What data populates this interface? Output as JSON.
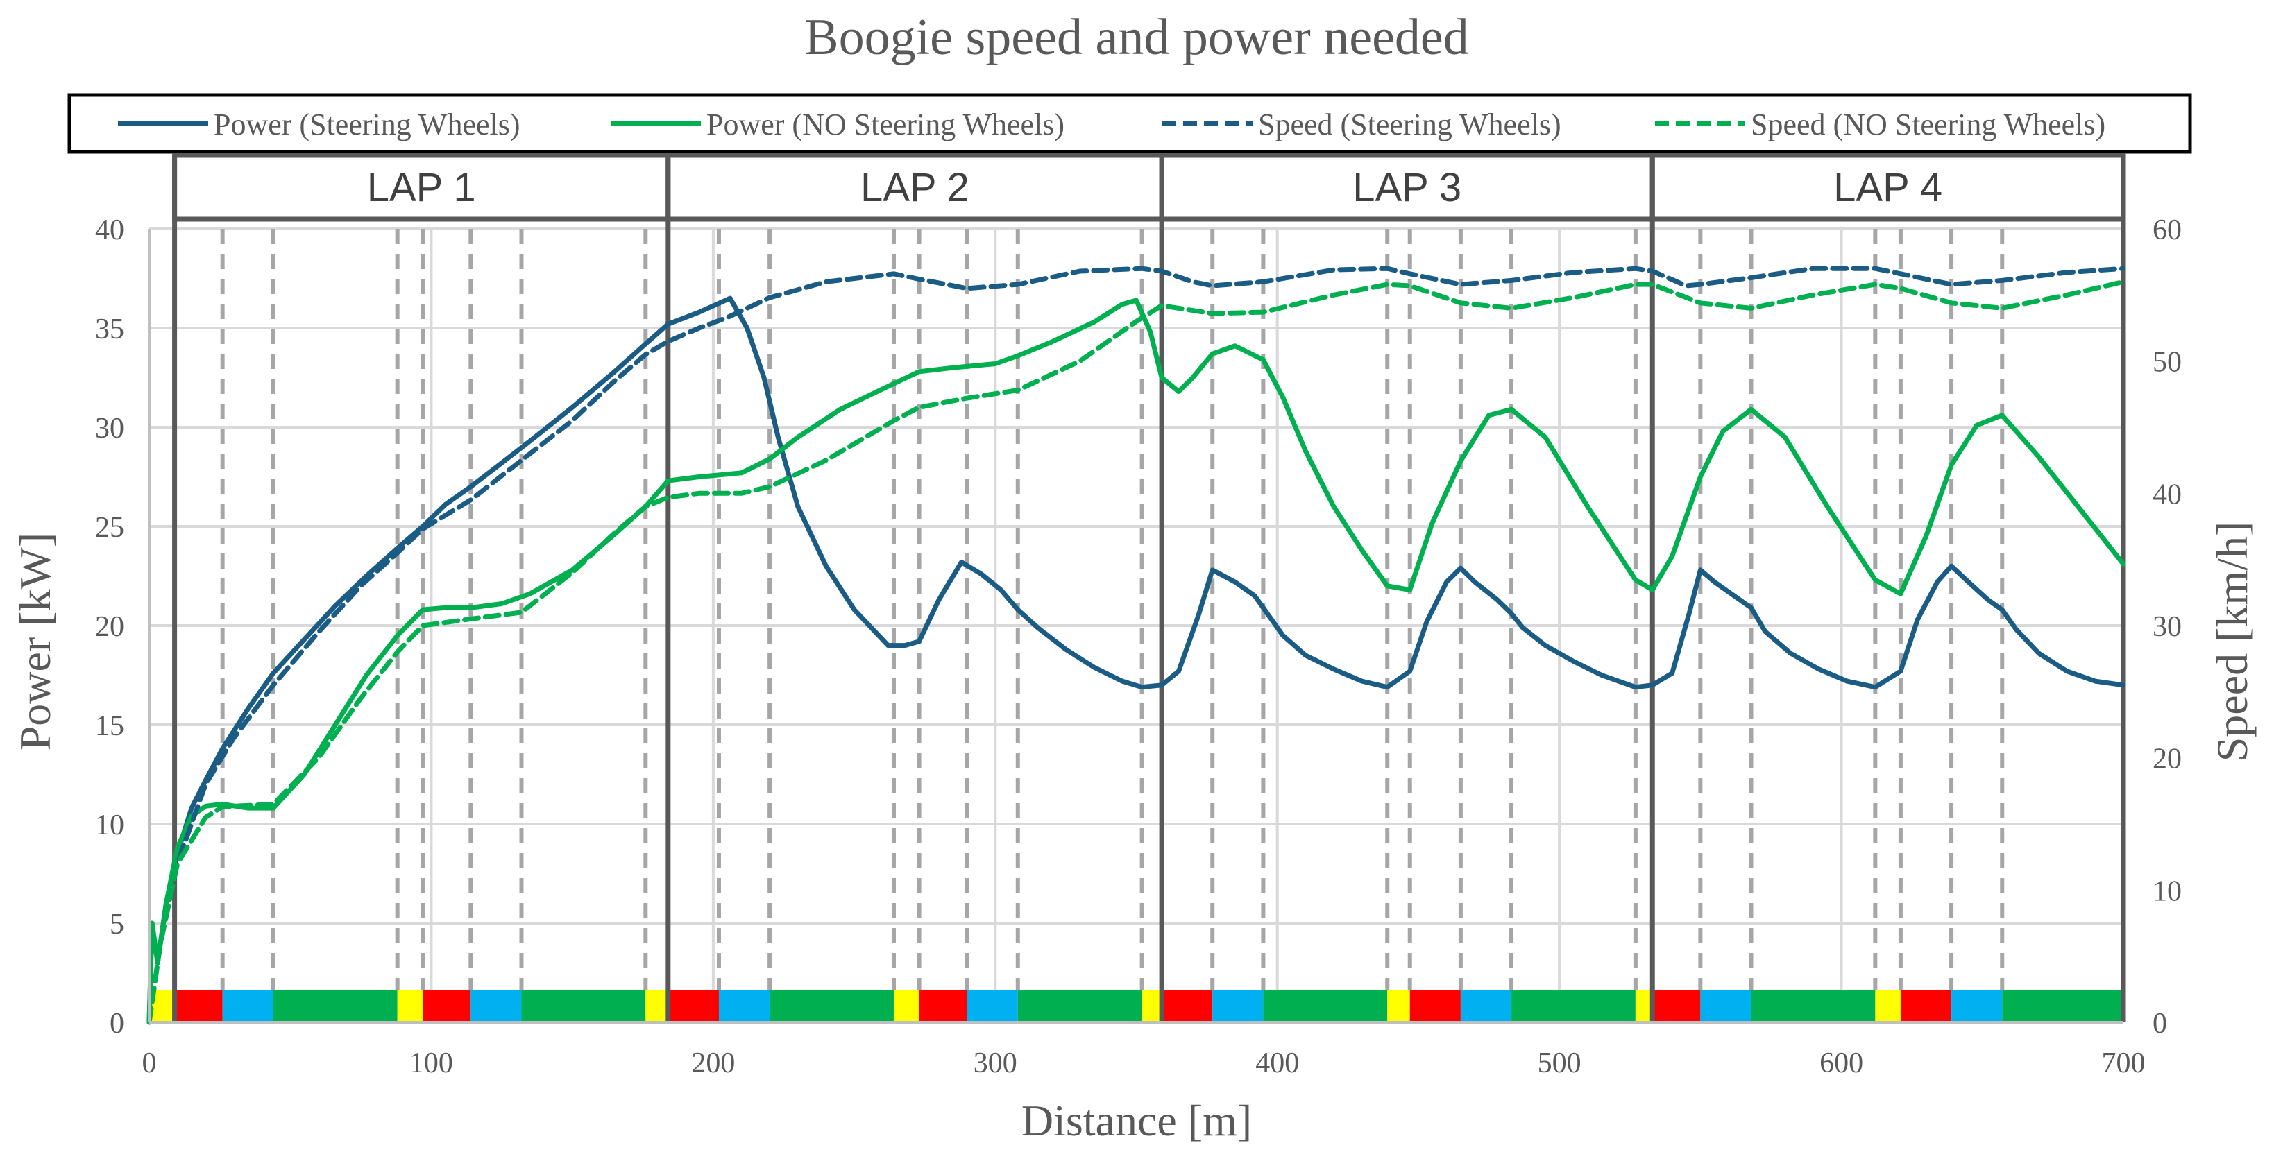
{
  "chart_data": {
    "type": "line",
    "title": "Boogie speed and power needed",
    "xlabel": "Distance [m]",
    "ylabel": "Power [kW]",
    "y2label": "Speed [km/h]",
    "xlim": [
      0,
      700
    ],
    "ylim": [
      0,
      40
    ],
    "y2lim": [
      0,
      60
    ],
    "xticks": [
      "0",
      "100",
      "200",
      "300",
      "400",
      "500",
      "600",
      "700"
    ],
    "yticks": [
      "0",
      "5",
      "10",
      "15",
      "20",
      "25",
      "30",
      "35",
      "40"
    ],
    "y2ticks": [
      "0",
      "10",
      "20",
      "30",
      "40",
      "50",
      "60"
    ],
    "legend_position": "top",
    "colors": {
      "steering": "#1B5C85",
      "no_steering": "#00B050",
      "red": "#FF0000",
      "yellow": "#FFFF00",
      "blue": "#00B0F0",
      "green": "#00B050",
      "lap_border": "#595959",
      "dashed": "#A6A6A6",
      "text": "#595959"
    },
    "laps": [
      {
        "label": "LAP 1",
        "start": 9,
        "end": 184
      },
      {
        "label": "LAP 2",
        "start": 184,
        "end": 359
      },
      {
        "label": "LAP 3",
        "start": 359,
        "end": 533
      },
      {
        "label": "LAP 4",
        "start": 533,
        "end": 700
      }
    ],
    "section_boundaries": [
      26,
      44,
      88,
      97,
      114,
      132,
      176,
      202,
      220,
      264,
      273,
      290,
      308,
      352,
      377,
      395,
      439,
      447,
      465,
      483,
      527,
      550,
      568,
      612,
      621,
      639,
      657,
      700
    ],
    "track_bar": [
      {
        "from": 0,
        "to": 9,
        "color": "yellow"
      },
      {
        "from": 9,
        "to": 26,
        "color": "red"
      },
      {
        "from": 26,
        "to": 44,
        "color": "blue"
      },
      {
        "from": 44,
        "to": 88,
        "color": "green"
      },
      {
        "from": 88,
        "to": 97,
        "color": "yellow"
      },
      {
        "from": 97,
        "to": 114,
        "color": "red"
      },
      {
        "from": 114,
        "to": 132,
        "color": "blue"
      },
      {
        "from": 132,
        "to": 176,
        "color": "green"
      },
      {
        "from": 176,
        "to": 184,
        "color": "yellow"
      },
      {
        "from": 184,
        "to": 202,
        "color": "red"
      },
      {
        "from": 202,
        "to": 220,
        "color": "blue"
      },
      {
        "from": 220,
        "to": 264,
        "color": "green"
      },
      {
        "from": 264,
        "to": 273,
        "color": "yellow"
      },
      {
        "from": 273,
        "to": 290,
        "color": "red"
      },
      {
        "from": 290,
        "to": 308,
        "color": "blue"
      },
      {
        "from": 308,
        "to": 352,
        "color": "green"
      },
      {
        "from": 352,
        "to": 359,
        "color": "yellow"
      },
      {
        "from": 359,
        "to": 377,
        "color": "red"
      },
      {
        "from": 377,
        "to": 395,
        "color": "blue"
      },
      {
        "from": 395,
        "to": 439,
        "color": "green"
      },
      {
        "from": 439,
        "to": 447,
        "color": "yellow"
      },
      {
        "from": 447,
        "to": 465,
        "color": "red"
      },
      {
        "from": 465,
        "to": 483,
        "color": "blue"
      },
      {
        "from": 483,
        "to": 527,
        "color": "green"
      },
      {
        "from": 527,
        "to": 533,
        "color": "yellow"
      },
      {
        "from": 533,
        "to": 550,
        "color": "red"
      },
      {
        "from": 550,
        "to": 568,
        "color": "blue"
      },
      {
        "from": 568,
        "to": 612,
        "color": "green"
      },
      {
        "from": 612,
        "to": 621,
        "color": "yellow"
      },
      {
        "from": 621,
        "to": 639,
        "color": "red"
      },
      {
        "from": 639,
        "to": 657,
        "color": "blue"
      },
      {
        "from": 657,
        "to": 700,
        "color": "green"
      }
    ],
    "series": [
      {
        "name": "Power (Steering Wheels)",
        "axis": "left",
        "style": "solid",
        "color_key": "steering",
        "x": [
          0,
          1,
          3,
          6,
          10,
          15,
          20,
          26,
          35,
          44,
          55,
          66,
          77,
          88,
          97,
          105,
          114,
          125,
          135,
          150,
          165,
          176,
          184,
          195,
          206,
          212,
          218,
          223,
          230,
          240,
          250,
          262,
          268,
          273,
          280,
          288,
          295,
          302,
          308,
          315,
          325,
          335,
          345,
          352,
          359,
          365,
          372,
          377,
          385,
          392,
          395,
          402,
          410,
          420,
          430,
          439,
          447,
          453,
          460,
          465,
          470,
          478,
          483,
          487,
          495,
          505,
          515,
          527,
          533,
          540,
          546,
          550,
          555,
          562,
          568,
          573,
          582,
          592,
          602,
          612,
          621,
          627,
          634,
          639,
          645,
          652,
          657,
          662,
          670,
          680,
          690,
          700
        ],
        "y": [
          0,
          5,
          3,
          6,
          8.5,
          10.8,
          12.2,
          13.8,
          15.8,
          17.6,
          19.3,
          21,
          22.5,
          23.9,
          25,
          26.1,
          27,
          28.2,
          29.3,
          31,
          32.8,
          34.2,
          35.2,
          35.8,
          36.5,
          35,
          32.5,
          29.5,
          26,
          23,
          20.8,
          19,
          19,
          19.2,
          21.3,
          23.2,
          22.6,
          21.8,
          20.8,
          19.9,
          18.8,
          17.9,
          17.2,
          16.9,
          17,
          17.7,
          20.5,
          22.8,
          22.2,
          21.5,
          20.9,
          19.5,
          18.5,
          17.8,
          17.2,
          16.9,
          17.7,
          20.2,
          22.2,
          22.9,
          22.2,
          21.3,
          20.6,
          19.9,
          19,
          18.2,
          17.5,
          16.9,
          17,
          17.6,
          20.6,
          22.8,
          22.2,
          21.5,
          20.9,
          19.7,
          18.6,
          17.8,
          17.2,
          16.9,
          17.7,
          20.3,
          22.2,
          23,
          22.2,
          21.3,
          20.8,
          19.8,
          18.6,
          17.7,
          17.2,
          17
        ],
        "points_note": "estimated from the figure"
      },
      {
        "name": "Power (NO Steering Wheels)",
        "axis": "left",
        "style": "solid",
        "color_key": "no_steering",
        "x": [
          0,
          1,
          3,
          6,
          10,
          15,
          20,
          26,
          35,
          44,
          55,
          66,
          77,
          88,
          97,
          105,
          114,
          125,
          135,
          150,
          165,
          176,
          184,
          195,
          210,
          220,
          230,
          245,
          264,
          273,
          285,
          300,
          308,
          320,
          335,
          345,
          350,
          355,
          359,
          365,
          370,
          377,
          385,
          395,
          402,
          410,
          420,
          430,
          439,
          447,
          455,
          465,
          475,
          483,
          495,
          510,
          527,
          533,
          540,
          550,
          558,
          568,
          580,
          595,
          612,
          621,
          630,
          639,
          648,
          657,
          670,
          685,
          700
        ],
        "y": [
          0,
          5,
          3,
          6,
          8.8,
          10.4,
          10.9,
          11,
          10.8,
          10.8,
          12.5,
          15,
          17.5,
          19.5,
          20.8,
          20.9,
          20.9,
          21.1,
          21.6,
          22.8,
          24.6,
          26,
          27.3,
          27.5,
          27.7,
          28.4,
          29.5,
          30.9,
          32.2,
          32.8,
          33,
          33.2,
          33.6,
          34.3,
          35.3,
          36.2,
          36.4,
          34.8,
          32.5,
          31.8,
          32.5,
          33.7,
          34.1,
          33.4,
          31.5,
          28.8,
          26,
          23.8,
          22,
          21.8,
          25.2,
          28.3,
          30.6,
          30.9,
          29.5,
          26,
          22.3,
          21.8,
          23.5,
          27.5,
          29.8,
          30.9,
          29.5,
          26,
          22.3,
          21.6,
          24.5,
          28.1,
          30.1,
          30.6,
          28.5,
          25.8,
          23.1
        ],
        "points_note": "estimated from the figure"
      },
      {
        "name": "Speed (Steering Wheels)",
        "axis": "right",
        "style": "dashed",
        "color_key": "steering",
        "x": [
          0,
          4,
          10,
          20,
          30,
          44,
          60,
          75,
          88,
          97,
          114,
          132,
          150,
          165,
          176,
          184,
          195,
          205,
          220,
          240,
          264,
          273,
          290,
          308,
          330,
          352,
          359,
          370,
          377,
          395,
          420,
          439,
          447,
          465,
          483,
          505,
          527,
          533,
          545,
          550,
          568,
          590,
          612,
          621,
          639,
          657,
          680,
          700
        ],
        "y": [
          0,
          6,
          12,
          18,
          21.5,
          25.5,
          29.5,
          33,
          35.5,
          37.3,
          39.5,
          42.5,
          45.5,
          48.5,
          50.5,
          51.5,
          52.5,
          53.3,
          54.8,
          56,
          56.6,
          56.2,
          55.5,
          55.8,
          56.8,
          57,
          56.8,
          56,
          55.7,
          56,
          56.9,
          57,
          56.6,
          55.8,
          56.1,
          56.7,
          57,
          56.8,
          55.7,
          55.8,
          56.3,
          57,
          57,
          56.6,
          55.8,
          56.1,
          56.7,
          57
        ],
        "points_note": "estimated from the figure"
      },
      {
        "name": "Speed (NO Steering Wheels)",
        "axis": "right",
        "style": "dashed",
        "color_key": "no_steering",
        "x": [
          0,
          4,
          10,
          20,
          26,
          44,
          60,
          75,
          88,
          97,
          114,
          132,
          150,
          165,
          176,
          184,
          195,
          210,
          220,
          240,
          264,
          273,
          290,
          308,
          330,
          350,
          359,
          377,
          395,
          420,
          439,
          447,
          465,
          483,
          505,
          527,
          533,
          550,
          568,
          590,
          612,
          621,
          639,
          657,
          680,
          700
        ],
        "y": [
          0,
          6,
          12,
          15.5,
          16.3,
          16.5,
          20,
          24.5,
          28,
          30,
          30.5,
          31,
          34,
          37,
          39,
          39.7,
          40,
          40,
          40.5,
          42.5,
          45.5,
          46.5,
          47.2,
          47.8,
          50,
          53,
          54.2,
          53.6,
          53.7,
          55,
          55.8,
          55.7,
          54.4,
          54,
          54.8,
          55.8,
          55.8,
          54.4,
          54,
          55,
          55.8,
          55.5,
          54.4,
          54,
          55,
          56
        ],
        "points_note": "estimated from the figure"
      }
    ]
  }
}
